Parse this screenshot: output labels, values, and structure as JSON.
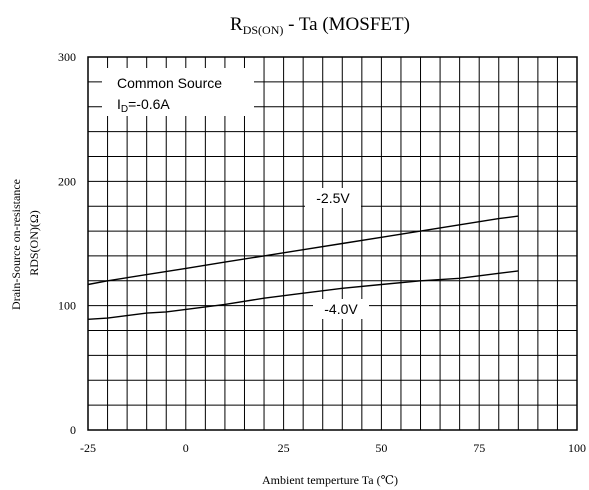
{
  "chart_data": {
    "type": "line",
    "title": {
      "main": "R",
      "sub": "DS(ON)",
      "rest": " - Ta (MOSFET)"
    },
    "xlabel": "Ambient temperture  Ta (℃)",
    "ylabel": {
      "line1": "Drain-Source on-resistance",
      "line2": "RDS(ON)(Ω)"
    },
    "xlim": [
      -25,
      100
    ],
    "ylim": [
      0,
      300
    ],
    "x_ticks": [
      -25,
      0,
      25,
      50,
      75,
      100
    ],
    "y_ticks": [
      0,
      100,
      200,
      300
    ],
    "x_tick_labels": [
      "-25",
      "0",
      "25",
      "50",
      "75",
      "100"
    ],
    "y_tick_labels": [
      "0",
      "100",
      "200",
      "300"
    ],
    "grid": true,
    "annotation": {
      "line1": "Common Source",
      "line2_main": "I",
      "line2_sub": "D",
      "line2_rest": "=-0.6A"
    },
    "series": [
      {
        "name": "-2.5V",
        "x": [
          -25,
          -20,
          -10,
          0,
          10,
          20,
          30,
          40,
          50,
          60,
          70,
          80,
          85
        ],
        "y": [
          117,
          120,
          125,
          130,
          135,
          140,
          145,
          150,
          155,
          160,
          165,
          170,
          172
        ]
      },
      {
        "name": "-4.0V",
        "x": [
          -25,
          -20,
          -15,
          -10,
          -5,
          0,
          10,
          20,
          30,
          40,
          50,
          60,
          70,
          80,
          85
        ],
        "y": [
          89,
          90,
          92,
          94,
          95,
          97,
          101,
          106,
          110,
          114,
          117,
          120,
          122,
          126,
          128
        ]
      }
    ]
  }
}
